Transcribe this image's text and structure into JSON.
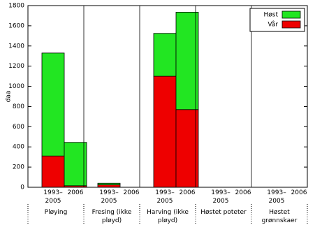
{
  "chart_data": {
    "type": "bar",
    "stacked": true,
    "ylabel": "daa",
    "groups": [
      [
        "Pløying"
      ],
      [
        "Fresing (ikke",
        "pløyd)"
      ],
      [
        "Harving (ikke",
        "pløyd)"
      ],
      [
        "Høstet poteter"
      ],
      [
        "Høstet",
        "grønnskaer"
      ]
    ],
    "categories": [
      [
        "1993–",
        "2005"
      ],
      [
        "2006"
      ],
      [
        "1993–",
        "2005"
      ],
      [
        "2006"
      ],
      [
        "1993–",
        "2005"
      ],
      [
        "2006"
      ],
      [
        "1993–",
        "2005"
      ],
      [
        "2006"
      ],
      [
        "1993–",
        "2005"
      ],
      [
        "2006"
      ]
    ],
    "series": [
      {
        "name": "Vår",
        "color": "#ee0000",
        "values": [
          310,
          15,
          25,
          0,
          1100,
          770,
          0,
          0,
          0,
          0
        ]
      },
      {
        "name": "Høst",
        "color": "#22e622",
        "values": [
          1020,
          430,
          15,
          0,
          425,
          965,
          0,
          0,
          0,
          0
        ]
      }
    ],
    "ylim": [
      0,
      1800
    ],
    "yticks": [
      0,
      200,
      400,
      600,
      800,
      1000,
      1200,
      1400,
      1600,
      1800
    ],
    "legend": "upper right"
  }
}
